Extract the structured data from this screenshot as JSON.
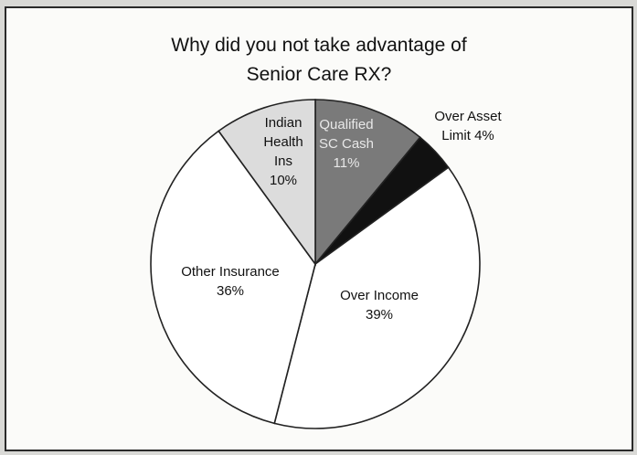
{
  "chart_data": {
    "type": "pie",
    "title_lines": [
      "Why did you not take advantage of",
      "Senior Care RX?"
    ],
    "start_angle_deg": 0,
    "direction": "clockwise",
    "slices": [
      {
        "label_lines": [
          "Qualified",
          "SC Cash",
          "11%"
        ],
        "value": 11,
        "color": "#7a7a7a"
      },
      {
        "label_lines": [
          "Over Asset",
          "Limit  4%"
        ],
        "value": 4,
        "color": "#111111"
      },
      {
        "label_lines": [
          "Over Income",
          "39%"
        ],
        "value": 39,
        "color": "#ffffff"
      },
      {
        "label_lines": [
          "Other Insurance",
          "36%"
        ],
        "value": 36,
        "color": "#ffffff"
      },
      {
        "label_lines": [
          "Indian",
          "Health",
          "Ins",
          "10%"
        ],
        "value": 10,
        "color": "#dcdcdc"
      }
    ]
  }
}
